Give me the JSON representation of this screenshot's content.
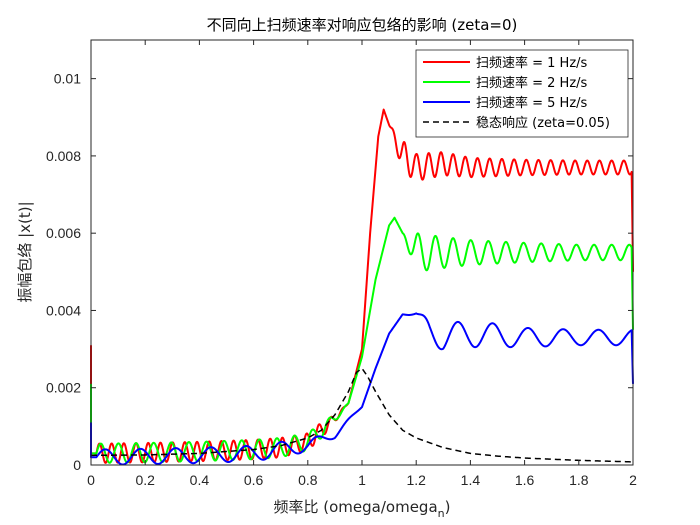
{
  "chart_data": {
    "type": "line",
    "title": "不同向上扫频速率对响应包络的影响 (zeta=0)",
    "xlabel": "频率比 (omega/omega",
    "xlabel_subscript": "n",
    "xlabel_suffix": ")",
    "ylabel": "振幅包络 |x(t)|",
    "xlim": [
      0,
      2
    ],
    "ylim": [
      0,
      0.011
    ],
    "xticks": [
      0,
      0.2,
      0.4,
      0.6,
      0.8,
      1,
      1.2,
      1.4,
      1.6,
      1.8,
      2
    ],
    "xtick_labels": [
      "0",
      "0.2",
      "0.4",
      "0.6",
      "0.8",
      "1",
      "1.2",
      "1.4",
      "1.6",
      "1.8",
      "2"
    ],
    "yticks": [
      0,
      0.002,
      0.004,
      0.006,
      0.008,
      0.01
    ],
    "ytick_labels": [
      "0",
      "0.002",
      "0.004",
      "0.006",
      "0.008",
      "0.01"
    ],
    "grid": false,
    "legend_position": "top-right",
    "series": [
      {
        "name": "扫频速率 = 1 Hz/s",
        "color": "#ff0000",
        "style": "solid",
        "onset_x": 0.02,
        "start_spike": 0.0031,
        "x": [
          0,
          0.2,
          0.4,
          0.6,
          0.7,
          0.8,
          0.85,
          0.9,
          0.95,
          1.0,
          1.03,
          1.06,
          1.08,
          1.1,
          1.15,
          1.2,
          1.3,
          1.4,
          1.6,
          1.8,
          1.995,
          2.0
        ],
        "y": [
          0.0003,
          0.00032,
          0.00035,
          0.0004,
          0.00045,
          0.0006,
          0.0009,
          0.0012,
          0.0016,
          0.003,
          0.006,
          0.0085,
          0.0092,
          0.0088,
          0.008,
          0.0077,
          0.0078,
          0.0077,
          0.0077,
          0.0077,
          0.0077,
          0.005
        ],
        "osc_amp": [
          0.00025,
          0.00025,
          0.00025,
          0.00025,
          0.00025,
          0.00022,
          0.0002,
          0.0001,
          0,
          0,
          0,
          0,
          0,
          0,
          0.0004,
          0.00035,
          0.0003,
          0.00025,
          0.0002,
          0.00018,
          0.00018,
          0
        ],
        "osc_period": 0.045
      },
      {
        "name": "扫频速率 = 2 Hz/s",
        "color": "#00ff00",
        "style": "solid",
        "onset_x": 0.02,
        "start_spike": 0.0021,
        "x": [
          0,
          0.2,
          0.4,
          0.6,
          0.7,
          0.8,
          0.85,
          0.9,
          0.95,
          1.0,
          1.05,
          1.1,
          1.12,
          1.15,
          1.2,
          1.3,
          1.4,
          1.6,
          1.8,
          1.995,
          2.0
        ],
        "y": [
          0.0003,
          0.00032,
          0.00035,
          0.0004,
          0.00045,
          0.0006,
          0.0009,
          0.0012,
          0.0016,
          0.0028,
          0.0048,
          0.0062,
          0.0064,
          0.006,
          0.0055,
          0.0055,
          0.0055,
          0.0055,
          0.0055,
          0.0055,
          0.0035
        ],
        "osc_amp": [
          0.00025,
          0.00025,
          0.00025,
          0.00025,
          0.00025,
          0.00022,
          0.0002,
          0.0001,
          0,
          0,
          0,
          0,
          0,
          0,
          0.0005,
          0.0004,
          0.00032,
          0.00025,
          0.0002,
          0.0002,
          0
        ],
        "osc_period": 0.065
      },
      {
        "name": "扫频速率 = 5 Hz/s",
        "color": "#0000ff",
        "style": "solid",
        "onset_x": 0.02,
        "start_spike": 0.0011,
        "x": [
          0,
          0.2,
          0.4,
          0.6,
          0.7,
          0.8,
          0.9,
          1.0,
          1.05,
          1.1,
          1.15,
          1.2,
          1.25,
          1.3,
          1.4,
          1.6,
          1.8,
          1.995,
          2.0
        ],
        "y": [
          0.0002,
          0.00022,
          0.00025,
          0.0003,
          0.0004,
          0.0005,
          0.0008,
          0.0015,
          0.0025,
          0.0034,
          0.0039,
          0.0039,
          0.0035,
          0.0033,
          0.0034,
          0.0033,
          0.0033,
          0.0033,
          0.0021
        ],
        "osc_amp": [
          0.0002,
          0.0002,
          0.0002,
          0.0002,
          0.0002,
          0.00015,
          0.0001,
          0,
          0,
          0,
          0,
          5e-05,
          0.0003,
          0.00035,
          0.00035,
          0.00025,
          0.0002,
          0.0002,
          0
        ],
        "osc_period": 0.13
      },
      {
        "name": "稳态响应 (zeta=0.05)",
        "color": "#000000",
        "style": "dashed",
        "x": [
          0,
          0.2,
          0.4,
          0.6,
          0.7,
          0.8,
          0.85,
          0.9,
          0.95,
          0.98,
          1.0,
          1.02,
          1.05,
          1.1,
          1.15,
          1.2,
          1.3,
          1.4,
          1.5,
          1.6,
          1.7,
          1.8,
          1.9,
          2.0
        ],
        "y": [
          0.00025,
          0.00026,
          0.0003,
          0.0004,
          0.0005,
          0.0007,
          0.0009,
          0.0013,
          0.0019,
          0.0024,
          0.0025,
          0.0023,
          0.0019,
          0.0013,
          0.0009,
          0.0007,
          0.00045,
          0.0003,
          0.00023,
          0.00018,
          0.00015,
          0.00012,
          0.0001,
          8e-05
        ],
        "osc_amp": [],
        "osc_period": 0
      }
    ]
  }
}
